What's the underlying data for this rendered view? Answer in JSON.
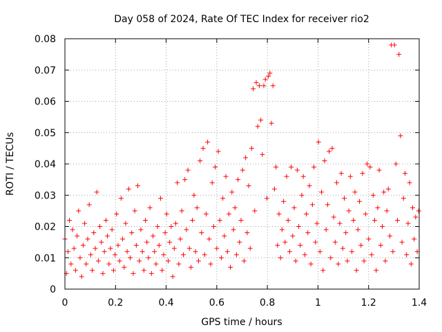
{
  "chart_data": {
    "type": "scatter",
    "title": "Day 058 of 2024, Rate Of TEC Index for receiver rio2",
    "xlabel": "GPS time / hours",
    "ylabel": "ROTI / TECUs",
    "xlim": [
      0,
      1.4
    ],
    "ylim": [
      0,
      0.08
    ],
    "xticks": [
      0,
      0.2,
      0.4,
      0.6,
      0.8,
      1,
      1.2,
      1.4
    ],
    "xtick_labels": [
      "0",
      "0.2",
      "0.4",
      "0.6",
      "0.8",
      "1",
      "1.2",
      "1.4"
    ],
    "yticks": [
      0,
      0.01,
      0.02,
      0.03,
      0.04,
      0.05,
      0.06,
      0.07,
      0.08
    ],
    "ytick_labels": [
      "0",
      "0.01",
      "0.02",
      "0.03",
      "0.04",
      "0.05",
      "0.06",
      "0.07",
      "0.08"
    ],
    "grid": true,
    "marker": "+",
    "color": "#ff0000",
    "series": [
      {
        "points": [
          [
            0.0,
            0.016
          ],
          [
            0.006,
            0.005
          ],
          [
            0.012,
            0.012
          ],
          [
            0.018,
            0.022
          ],
          [
            0.024,
            0.008
          ],
          [
            0.03,
            0.019
          ],
          [
            0.036,
            0.013
          ],
          [
            0.042,
            0.006
          ],
          [
            0.048,
            0.017
          ],
          [
            0.054,
            0.025
          ],
          [
            0.06,
            0.01
          ],
          [
            0.066,
            0.004
          ],
          [
            0.072,
            0.014
          ],
          [
            0.078,
            0.021
          ],
          [
            0.084,
            0.008
          ],
          [
            0.09,
            0.016
          ],
          [
            0.096,
            0.027
          ],
          [
            0.102,
            0.011
          ],
          [
            0.108,
            0.006
          ],
          [
            0.114,
            0.018
          ],
          [
            0.12,
            0.013
          ],
          [
            0.126,
            0.031
          ],
          [
            0.132,
            0.009
          ],
          [
            0.138,
            0.02
          ],
          [
            0.144,
            0.015
          ],
          [
            0.15,
            0.005
          ],
          [
            0.156,
            0.012
          ],
          [
            0.162,
            0.022
          ],
          [
            0.168,
            0.017
          ],
          [
            0.174,
            0.008
          ],
          [
            0.18,
            0.013
          ],
          [
            0.186,
            0.019
          ],
          [
            0.192,
            0.006
          ],
          [
            0.198,
            0.011
          ],
          [
            0.204,
            0.024
          ],
          [
            0.21,
            0.014
          ],
          [
            0.216,
            0.009
          ],
          [
            0.222,
            0.029
          ],
          [
            0.228,
            0.016
          ],
          [
            0.234,
            0.007
          ],
          [
            0.24,
            0.021
          ],
          [
            0.246,
            0.012
          ],
          [
            0.252,
            0.032
          ],
          [
            0.258,
            0.01
          ],
          [
            0.264,
            0.018
          ],
          [
            0.27,
            0.005
          ],
          [
            0.276,
            0.025
          ],
          [
            0.282,
            0.014
          ],
          [
            0.288,
            0.033
          ],
          [
            0.294,
            0.009
          ],
          [
            0.3,
            0.019
          ],
          [
            0.306,
            0.012
          ],
          [
            0.312,
            0.006
          ],
          [
            0.318,
            0.022
          ],
          [
            0.324,
            0.015
          ],
          [
            0.33,
            0.01
          ],
          [
            0.336,
            0.026
          ],
          [
            0.342,
            0.005
          ],
          [
            0.348,
            0.017
          ],
          [
            0.354,
            0.012
          ],
          [
            0.36,
            0.008
          ],
          [
            0.366,
            0.02
          ],
          [
            0.372,
            0.014
          ],
          [
            0.378,
            0.029
          ],
          [
            0.384,
            0.006
          ],
          [
            0.39,
            0.011
          ],
          [
            0.396,
            0.018
          ],
          [
            0.402,
            0.024
          ],
          [
            0.408,
            0.009
          ],
          [
            0.414,
            0.015
          ],
          [
            0.42,
            0.02
          ],
          [
            0.426,
            0.004
          ],
          [
            0.432,
            0.013
          ],
          [
            0.438,
            0.021
          ],
          [
            0.444,
            0.034
          ],
          [
            0.45,
            0.008
          ],
          [
            0.456,
            0.016
          ],
          [
            0.462,
            0.025
          ],
          [
            0.468,
            0.011
          ],
          [
            0.474,
            0.035
          ],
          [
            0.48,
            0.019
          ],
          [
            0.486,
            0.038
          ],
          [
            0.492,
            0.013
          ],
          [
            0.498,
            0.007
          ],
          [
            0.504,
            0.022
          ],
          [
            0.51,
            0.03
          ],
          [
            0.516,
            0.012
          ],
          [
            0.522,
            0.026
          ],
          [
            0.528,
            0.009
          ],
          [
            0.534,
            0.041
          ],
          [
            0.54,
            0.018
          ],
          [
            0.546,
            0.045
          ],
          [
            0.552,
            0.011
          ],
          [
            0.558,
            0.024
          ],
          [
            0.564,
            0.047
          ],
          [
            0.57,
            0.016
          ],
          [
            0.576,
            0.008
          ],
          [
            0.582,
            0.034
          ],
          [
            0.588,
            0.02
          ],
          [
            0.594,
            0.039
          ],
          [
            0.6,
            0.013
          ],
          [
            0.606,
            0.044
          ],
          [
            0.612,
            0.022
          ],
          [
            0.618,
            0.01
          ],
          [
            0.624,
            0.029
          ],
          [
            0.63,
            0.017
          ],
          [
            0.636,
            0.036
          ],
          [
            0.642,
            0.012
          ],
          [
            0.648,
            0.024
          ],
          [
            0.654,
            0.007
          ],
          [
            0.66,
            0.031
          ],
          [
            0.666,
            0.019
          ],
          [
            0.672,
            0.026
          ],
          [
            0.678,
            0.011
          ],
          [
            0.684,
            0.035
          ],
          [
            0.69,
            0.015
          ],
          [
            0.696,
            0.022
          ],
          [
            0.702,
            0.038
          ],
          [
            0.708,
            0.009
          ],
          [
            0.714,
            0.042
          ],
          [
            0.72,
            0.018
          ],
          [
            0.726,
            0.033
          ],
          [
            0.732,
            0.013
          ],
          [
            0.738,
            0.045
          ],
          [
            0.744,
            0.064
          ],
          [
            0.75,
            0.025
          ],
          [
            0.756,
            0.066
          ],
          [
            0.762,
            0.052
          ],
          [
            0.768,
            0.065
          ],
          [
            0.774,
            0.054
          ],
          [
            0.78,
            0.043
          ],
          [
            0.786,
            0.065
          ],
          [
            0.792,
            0.067
          ],
          [
            0.798,
            0.029
          ],
          [
            0.804,
            0.068
          ],
          [
            0.81,
            0.069
          ],
          [
            0.816,
            0.053
          ],
          [
            0.822,
            0.065
          ],
          [
            0.828,
            0.032
          ],
          [
            0.834,
            0.039
          ],
          [
            0.84,
            0.014
          ],
          [
            0.846,
            0.024
          ],
          [
            0.852,
            0.01
          ],
          [
            0.858,
            0.019
          ],
          [
            0.864,
            0.028
          ],
          [
            0.87,
            0.015
          ],
          [
            0.876,
            0.036
          ],
          [
            0.882,
            0.022
          ],
          [
            0.888,
            0.012
          ],
          [
            0.894,
            0.039
          ],
          [
            0.9,
            0.017
          ],
          [
            0.906,
            0.026
          ],
          [
            0.912,
            0.009
          ],
          [
            0.918,
            0.038
          ],
          [
            0.924,
            0.02
          ],
          [
            0.93,
            0.014
          ],
          [
            0.936,
            0.03
          ],
          [
            0.942,
            0.036
          ],
          [
            0.948,
            0.011
          ],
          [
            0.954,
            0.024
          ],
          [
            0.96,
            0.018
          ],
          [
            0.966,
            0.033
          ],
          [
            0.972,
            0.008
          ],
          [
            0.978,
            0.027
          ],
          [
            0.984,
            0.039
          ],
          [
            0.99,
            0.015
          ],
          [
            0.996,
            0.021
          ],
          [
            1.002,
            0.047
          ],
          [
            1.008,
            0.012
          ],
          [
            1.014,
            0.031
          ],
          [
            1.02,
            0.006
          ],
          [
            1.026,
            0.041
          ],
          [
            1.032,
            0.019
          ],
          [
            1.038,
            0.027
          ],
          [
            1.044,
            0.044
          ],
          [
            1.05,
            0.01
          ],
          [
            1.056,
            0.045
          ],
          [
            1.062,
            0.023
          ],
          [
            1.068,
            0.015
          ],
          [
            1.074,
            0.034
          ],
          [
            1.08,
            0.008
          ],
          [
            1.086,
            0.021
          ],
          [
            1.092,
            0.037
          ],
          [
            1.098,
            0.013
          ],
          [
            1.104,
            0.029
          ],
          [
            1.11,
            0.018
          ],
          [
            1.116,
            0.009
          ],
          [
            1.122,
            0.025
          ],
          [
            1.128,
            0.036
          ],
          [
            1.134,
            0.012
          ],
          [
            1.14,
            0.022
          ],
          [
            1.146,
            0.031
          ],
          [
            1.152,
            0.006
          ],
          [
            1.158,
            0.019
          ],
          [
            1.164,
            0.028
          ],
          [
            1.17,
            0.014
          ],
          [
            1.176,
            0.037
          ],
          [
            1.182,
            0.009
          ],
          [
            1.188,
            0.024
          ],
          [
            1.194,
            0.04
          ],
          [
            1.2,
            0.016
          ],
          [
            1.206,
            0.039
          ],
          [
            1.212,
            0.011
          ],
          [
            1.218,
            0.03
          ],
          [
            1.224,
            0.022
          ],
          [
            1.23,
            0.006
          ],
          [
            1.236,
            0.026
          ],
          [
            1.242,
            0.038
          ],
          [
            1.248,
            0.014
          ],
          [
            1.254,
            0.02
          ],
          [
            1.26,
            0.031
          ],
          [
            1.266,
            0.009
          ],
          [
            1.272,
            0.025
          ],
          [
            1.278,
            0.032
          ],
          [
            1.284,
            0.017
          ],
          [
            1.29,
            0.078
          ],
          [
            1.296,
            0.012
          ],
          [
            1.302,
            0.078
          ],
          [
            1.308,
            0.04
          ],
          [
            1.314,
            0.022
          ],
          [
            1.32,
            0.075
          ],
          [
            1.326,
            0.049
          ],
          [
            1.332,
            0.015
          ],
          [
            1.338,
            0.029
          ],
          [
            1.344,
            0.037
          ],
          [
            1.35,
            0.011
          ],
          [
            1.356,
            0.021
          ],
          [
            1.362,
            0.034
          ],
          [
            1.368,
            0.008
          ],
          [
            1.374,
            0.026
          ],
          [
            1.38,
            0.016
          ],
          [
            1.386,
            0.023
          ],
          [
            1.392,
            0.012
          ],
          [
            1.398,
            0.025
          ]
        ]
      }
    ]
  }
}
